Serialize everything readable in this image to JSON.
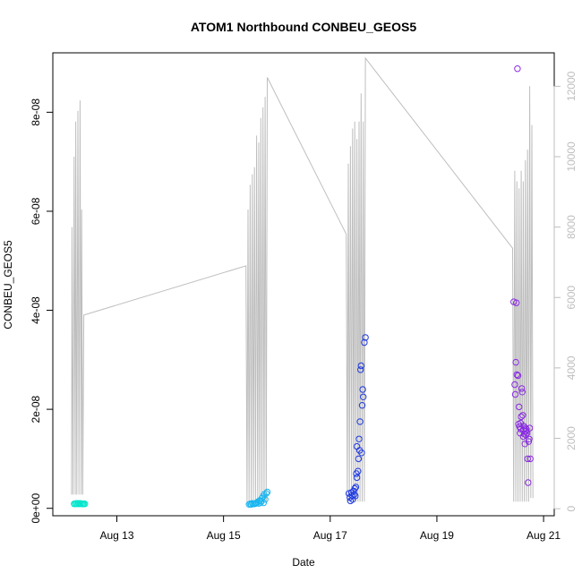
{
  "chart_data": {
    "type": "scatter",
    "title": "ATOM1 Northbound CONBEU_GEOS5",
    "xlabel": "Date",
    "ylabel": "CONBEU_GEOS5",
    "x_tick_labels": [
      "Aug 13",
      "Aug 15",
      "Aug 17",
      "Aug 19",
      "Aug 21"
    ],
    "x_tick_days": [
      13,
      15,
      17,
      19,
      21
    ],
    "xlim_days": [
      11.8,
      21.2
    ],
    "y_tick_labels": [
      "0e+00",
      "2e-08",
      "4e-08",
      "6e-08",
      "8e-08"
    ],
    "y_ticks": [
      0,
      2e-08,
      4e-08,
      6e-08,
      8e-08
    ],
    "ylim": [
      -1.5e-09,
      9.2e-08
    ],
    "y2_tick_labels": [
      "0",
      "2000",
      "4000",
      "6000",
      "8000",
      "10000",
      "12000"
    ],
    "y2_ticks": [
      0,
      2000,
      4000,
      6000,
      8000,
      10000,
      12000
    ],
    "y2lim": [
      -200,
      12950
    ],
    "altitude_color": "#bebebe",
    "grid": false,
    "series": [
      {
        "color": "#00e5cc",
        "points": [
          [
            12.2,
            9e-10
          ],
          [
            12.22,
            9e-10
          ],
          [
            12.24,
            1e-09
          ],
          [
            12.26,
            9e-10
          ],
          [
            12.28,
            1e-09
          ],
          [
            12.3,
            9e-10
          ],
          [
            12.32,
            1e-09
          ],
          [
            12.34,
            9e-10
          ],
          [
            12.36,
            9e-10
          ],
          [
            12.38,
            9e-10
          ],
          [
            12.4,
            9e-10
          ]
        ]
      },
      {
        "color": "#1ab6f0",
        "points": [
          [
            15.48,
            8e-10
          ],
          [
            15.5,
            9e-10
          ],
          [
            15.52,
            8e-10
          ],
          [
            15.54,
            1e-09
          ],
          [
            15.56,
            9e-10
          ],
          [
            15.58,
            9e-10
          ],
          [
            15.6,
            1e-09
          ],
          [
            15.62,
            1.1e-09
          ],
          [
            15.64,
            1.3e-09
          ],
          [
            15.66,
            1e-09
          ],
          [
            15.68,
            1.6e-09
          ],
          [
            15.7,
            1.2e-09
          ],
          [
            15.72,
            2e-09
          ],
          [
            15.74,
            2.3e-09
          ],
          [
            15.76,
            2.8e-09
          ],
          [
            15.78,
            1.8e-09
          ],
          [
            15.8,
            3e-09
          ],
          [
            15.82,
            3.3e-09
          ],
          [
            15.71,
            1.5e-09
          ],
          [
            15.75,
            1.1e-09
          ]
        ]
      },
      {
        "color": "#1f3ae0",
        "points": [
          [
            17.35,
            3e-09
          ],
          [
            17.37,
            2.2e-09
          ],
          [
            17.38,
            1.5e-09
          ],
          [
            17.4,
            3.2e-09
          ],
          [
            17.42,
            1.8e-09
          ],
          [
            17.44,
            3.5e-09
          ],
          [
            17.46,
            4e-09
          ],
          [
            17.47,
            2.5e-09
          ],
          [
            17.48,
            4.3e-09
          ],
          [
            17.49,
            7e-09
          ],
          [
            17.5,
            6.2e-09
          ],
          [
            17.5,
            1.25e-08
          ],
          [
            17.52,
            7.5e-09
          ],
          [
            17.53,
            1e-08
          ],
          [
            17.54,
            1.4e-08
          ],
          [
            17.55,
            1.17e-08
          ],
          [
            17.56,
            1.75e-08
          ],
          [
            17.57,
            2.8e-08
          ],
          [
            17.58,
            2.88e-08
          ],
          [
            17.59,
            1.12e-08
          ],
          [
            17.6,
            2.08e-08
          ],
          [
            17.61,
            2.4e-08
          ],
          [
            17.62,
            2.25e-08
          ],
          [
            17.64,
            3.35e-08
          ],
          [
            17.66,
            3.45e-08
          ],
          [
            17.45,
            2.8e-09
          ],
          [
            17.41,
            2.6e-09
          ]
        ]
      },
      {
        "color": "#8a2be2",
        "points": [
          [
            20.44,
            4.17e-08
          ],
          [
            20.46,
            2.5e-08
          ],
          [
            20.47,
            2.3e-08
          ],
          [
            20.48,
            2.95e-08
          ],
          [
            20.49,
            4.15e-08
          ],
          [
            20.5,
            2.7e-08
          ],
          [
            20.51,
            8.88e-08
          ],
          [
            20.52,
            2.68e-08
          ],
          [
            20.53,
            1.7e-08
          ],
          [
            20.54,
            2.05e-08
          ],
          [
            20.55,
            1.65e-08
          ],
          [
            20.56,
            1.52e-08
          ],
          [
            20.57,
            1.6e-08
          ],
          [
            20.58,
            1.85e-08
          ],
          [
            20.59,
            2.42e-08
          ],
          [
            20.6,
            2.35e-08
          ],
          [
            20.61,
            1.88e-08
          ],
          [
            20.62,
            1.58e-08
          ],
          [
            20.63,
            1.66e-08
          ],
          [
            20.64,
            1.5e-08
          ],
          [
            20.65,
            1.3e-08
          ],
          [
            20.66,
            1.62e-08
          ],
          [
            20.67,
            1.56e-08
          ],
          [
            20.68,
            1.6e-08
          ],
          [
            20.69,
            1.52e-08
          ],
          [
            20.7,
            1e-08
          ],
          [
            20.71,
            5.2e-09
          ],
          [
            20.72,
            1.35e-08
          ],
          [
            20.73,
            1.4e-08
          ],
          [
            20.74,
            1.62e-08
          ],
          [
            20.75,
            1e-08
          ],
          [
            20.57,
            1.72e-08
          ],
          [
            20.62,
            1.45e-08
          ],
          [
            20.67,
            1.48e-08
          ]
        ]
      }
    ],
    "altitude": [
      [
        12.15,
        400
      ],
      [
        12.16,
        8000
      ],
      [
        12.18,
        400
      ],
      [
        12.2,
        10000
      ],
      [
        12.22,
        400
      ],
      [
        12.23,
        11000
      ],
      [
        12.25,
        400
      ],
      [
        12.27,
        11300
      ],
      [
        12.29,
        400
      ],
      [
        12.31,
        11600
      ],
      [
        12.33,
        400
      ],
      [
        12.34,
        8500
      ],
      [
        12.36,
        400
      ],
      [
        12.38,
        5500
      ],
      [
        15.42,
        6900
      ],
      [
        15.44,
        200
      ],
      [
        15.46,
        8500
      ],
      [
        15.48,
        200
      ],
      [
        15.5,
        9200
      ],
      [
        15.52,
        200
      ],
      [
        15.54,
        9500
      ],
      [
        15.56,
        200
      ],
      [
        15.58,
        9700
      ],
      [
        15.6,
        200
      ],
      [
        15.62,
        10600
      ],
      [
        15.64,
        200
      ],
      [
        15.66,
        10400
      ],
      [
        15.68,
        200
      ],
      [
        15.7,
        11100
      ],
      [
        15.72,
        200
      ],
      [
        15.74,
        11400
      ],
      [
        15.76,
        200
      ],
      [
        15.78,
        11700
      ],
      [
        15.8,
        200
      ],
      [
        15.82,
        12250
      ],
      [
        17.3,
        7800
      ],
      [
        17.32,
        200
      ],
      [
        17.34,
        9800
      ],
      [
        17.36,
        200
      ],
      [
        17.38,
        10300
      ],
      [
        17.4,
        200
      ],
      [
        17.42,
        10800
      ],
      [
        17.44,
        200
      ],
      [
        17.46,
        11000
      ],
      [
        17.48,
        200
      ],
      [
        17.5,
        10500
      ],
      [
        17.52,
        200
      ],
      [
        17.54,
        11000
      ],
      [
        17.56,
        200
      ],
      [
        17.58,
        11800
      ],
      [
        17.6,
        200
      ],
      [
        17.62,
        11000
      ],
      [
        17.64,
        200
      ],
      [
        17.66,
        12800
      ],
      [
        20.42,
        7400
      ],
      [
        20.44,
        200
      ],
      [
        20.46,
        9600
      ],
      [
        20.48,
        200
      ],
      [
        20.5,
        9300
      ],
      [
        20.52,
        200
      ],
      [
        20.54,
        9100
      ],
      [
        20.56,
        200
      ],
      [
        20.58,
        9600
      ],
      [
        20.6,
        200
      ],
      [
        20.62,
        9300
      ],
      [
        20.64,
        200
      ],
      [
        20.66,
        9900
      ],
      [
        20.68,
        200
      ],
      [
        20.7,
        10200
      ],
      [
        20.72,
        200
      ],
      [
        20.74,
        12000
      ],
      [
        20.76,
        300
      ],
      [
        20.78,
        10900
      ],
      [
        20.8,
        300
      ]
    ]
  }
}
